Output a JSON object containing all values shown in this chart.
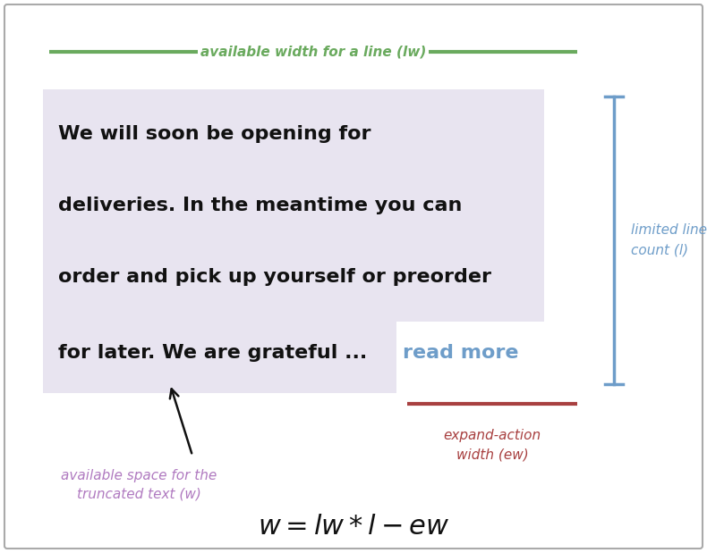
{
  "bg_color": "#ffffff",
  "border_color": "#aaaaaa",
  "title_formula": "$w = lw * l - ew$",
  "green_color": "#6aaa5e",
  "blue_color": "#6e9dc9",
  "red_color": "#a84040",
  "purple_color": "#b07ac0",
  "text_box_bg": "#e8e4f0",
  "last_line_bg": "#e8e4f0",
  "main_text_lines": [
    "We will soon be opening for",
    "deliveries. In the meantime you can",
    "order and pick up yourself or preorder",
    "for later. We are grateful ... "
  ],
  "read_more_text": "read more",
  "lw_label": "available width for a line (lw)",
  "limited_label": "limited line\ncount (l)",
  "expand_label": "expand-action\nwidth (ew)",
  "available_label": "available space for the\ntruncated text (w)"
}
